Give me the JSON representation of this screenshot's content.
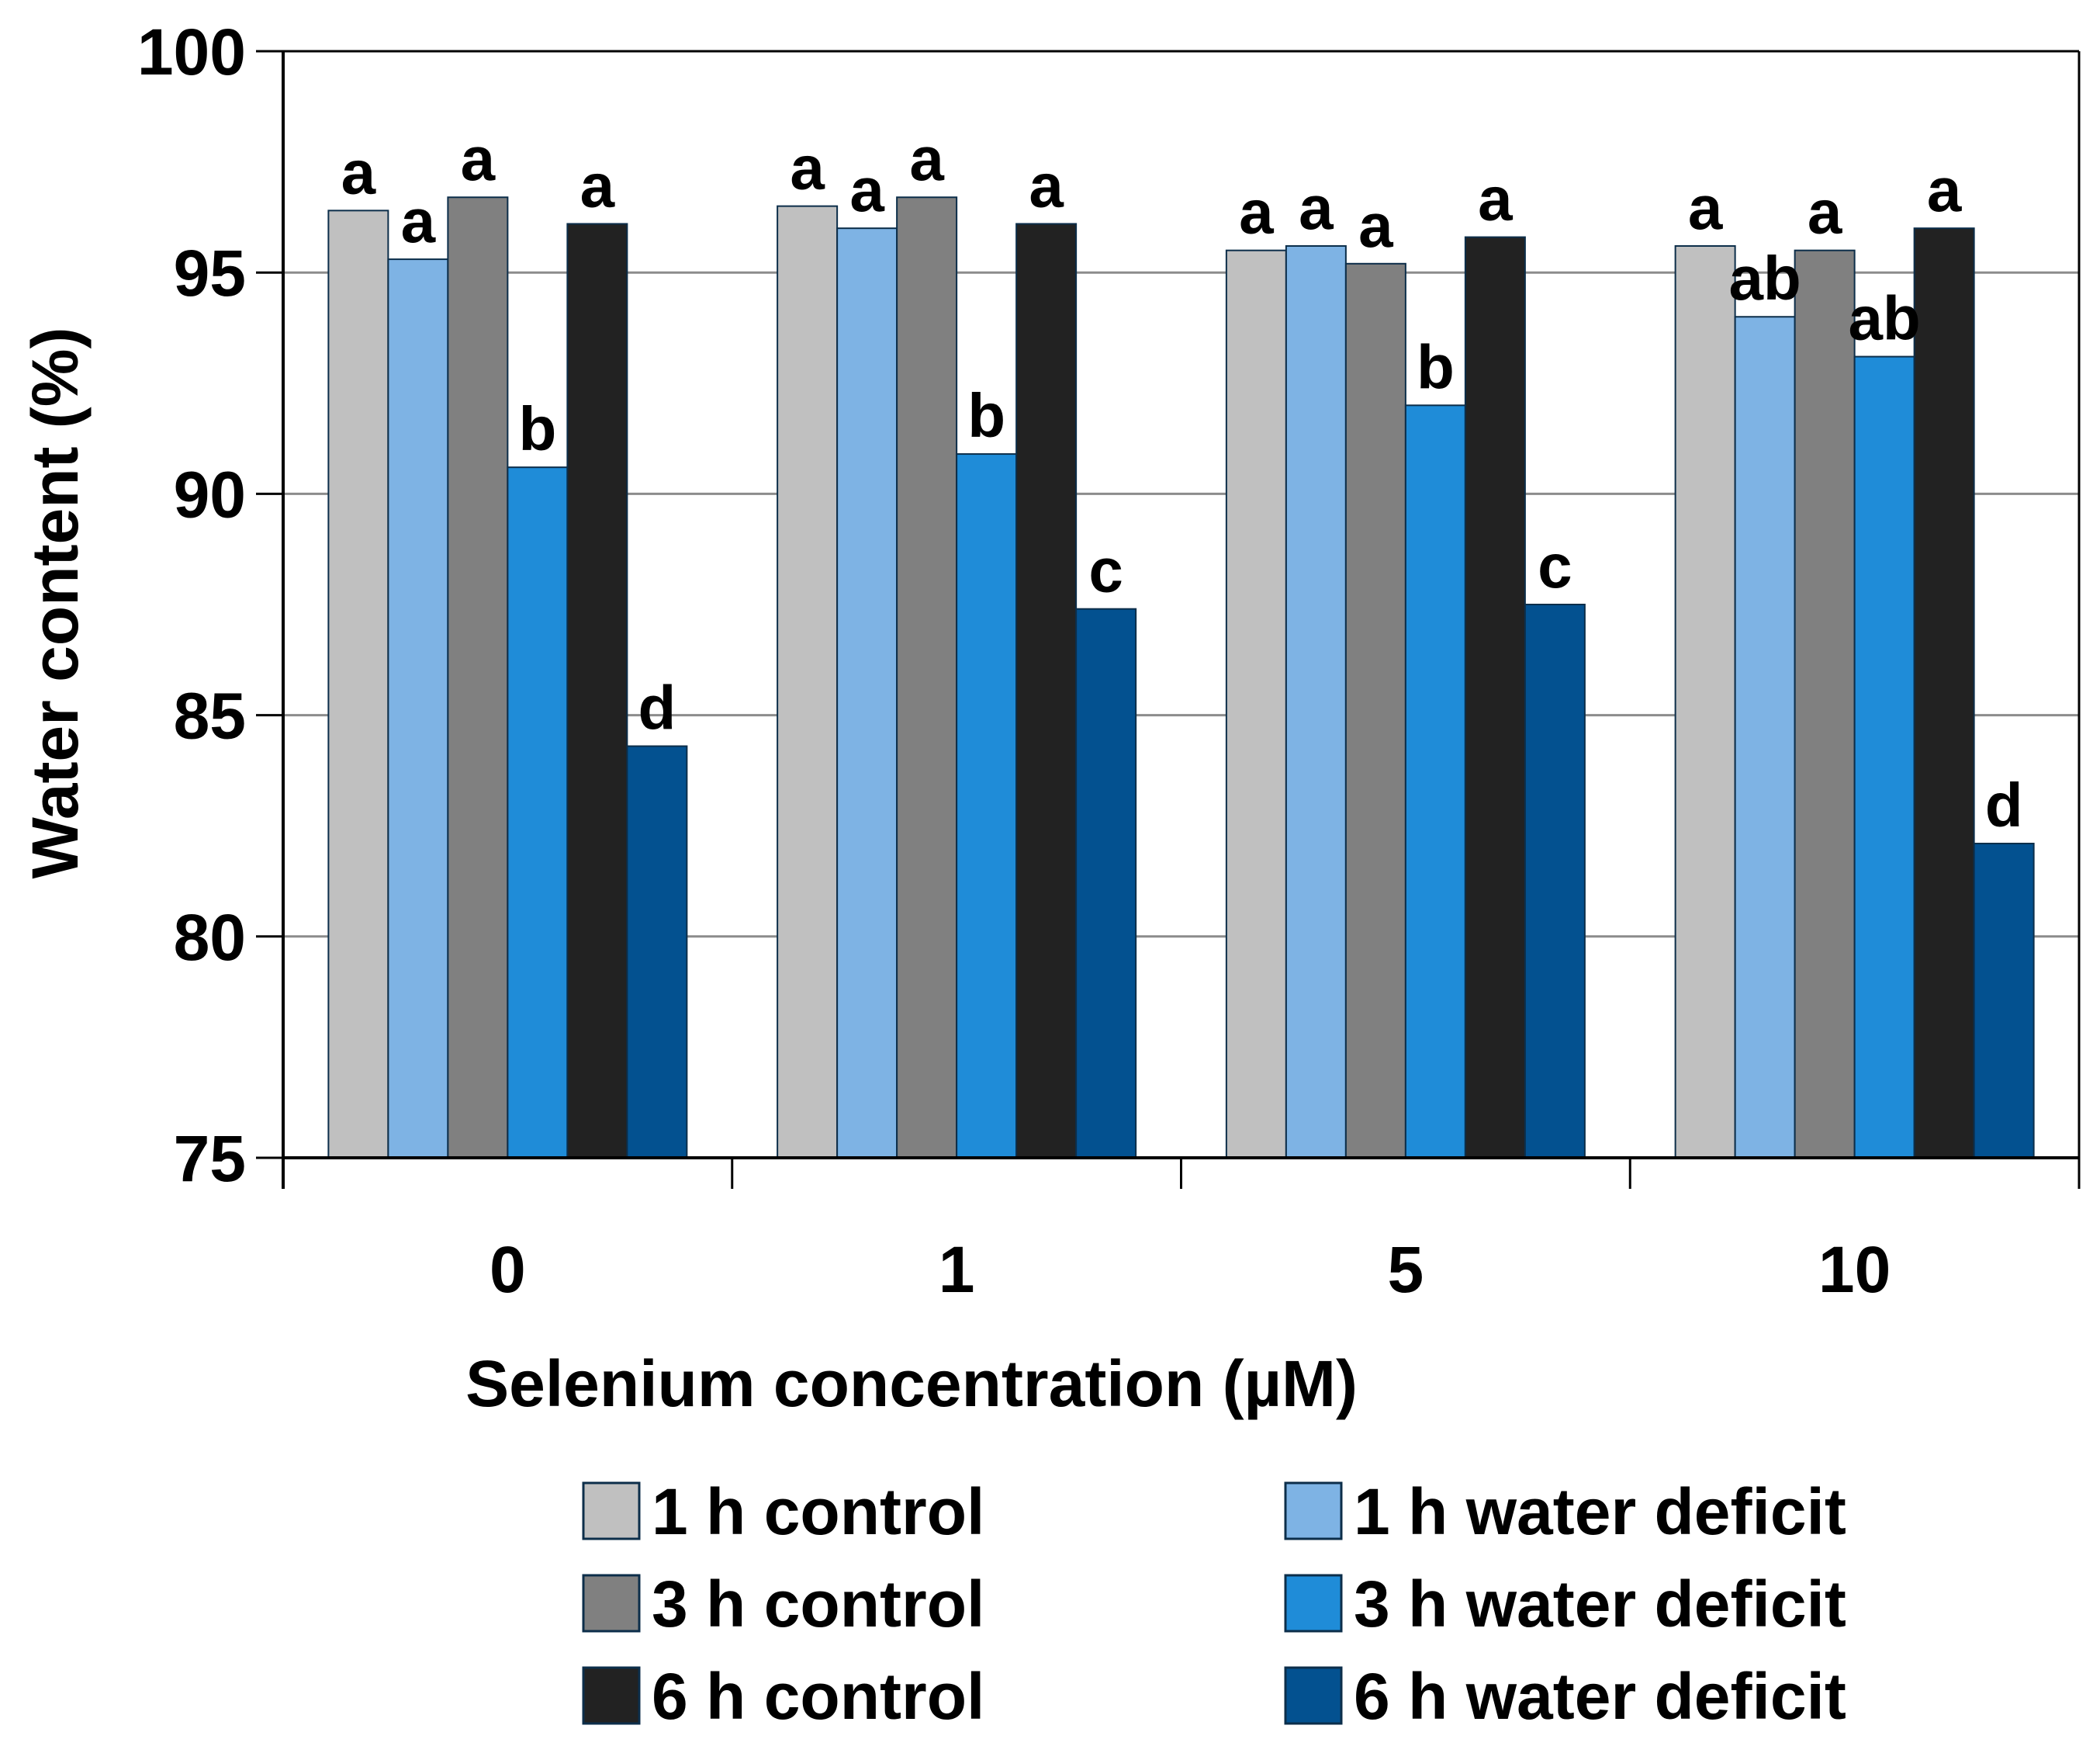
{
  "chart_data": {
    "type": "bar",
    "xlabel": "Selenium concentration (µM)",
    "ylabel": "Water content (%)",
    "ylim": [
      75,
      100
    ],
    "yticks": [
      75,
      80,
      85,
      90,
      95,
      100
    ],
    "grid": true,
    "legend_position": "bottom",
    "categories": [
      "0",
      "1",
      "5",
      "10"
    ],
    "series": [
      {
        "name": "1 h control",
        "color": "#c0c0c0",
        "values": [
          96.4,
          96.5,
          95.5,
          95.6
        ],
        "labels": [
          "a",
          "a",
          "a",
          "a"
        ]
      },
      {
        "name": "1 h water deficit",
        "color": "#7eb3e4",
        "values": [
          95.3,
          96.0,
          95.6,
          94.0
        ],
        "labels": [
          "a",
          "a",
          "a",
          "ab"
        ]
      },
      {
        "name": "3 h control",
        "color": "#808080",
        "values": [
          96.7,
          96.7,
          95.2,
          95.5
        ],
        "labels": [
          "a",
          "a",
          "a",
          "a"
        ]
      },
      {
        "name": "3 h water deficit",
        "color": "#1f8cd8",
        "values": [
          90.6,
          90.9,
          92.0,
          93.1
        ],
        "labels": [
          "b",
          "b",
          "b",
          "ab"
        ]
      },
      {
        "name": "6 h control",
        "color": "#222222",
        "values": [
          96.1,
          96.1,
          95.8,
          96.0
        ],
        "labels": [
          "a",
          "a",
          "a",
          "a"
        ]
      },
      {
        "name": "6 h water deficit",
        "color": "#035190",
        "values": [
          84.3,
          87.4,
          87.5,
          82.1
        ],
        "labels": [
          "d",
          "c",
          "c",
          "d"
        ]
      }
    ]
  }
}
